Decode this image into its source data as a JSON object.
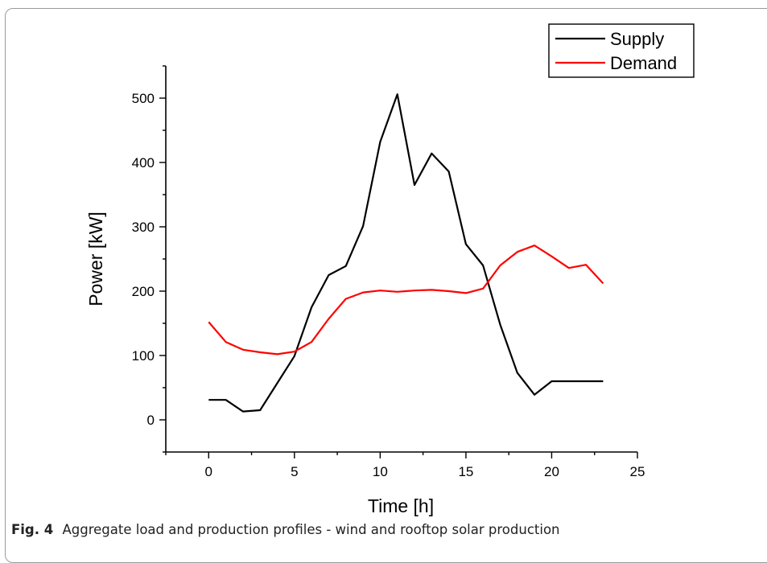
{
  "caption": {
    "label": "Fig. 4",
    "text": "Aggregate load and production profiles - wind and rooftop solar production"
  },
  "chart_data": {
    "type": "line",
    "title": "",
    "xlabel": "Time [h]",
    "ylabel": "Power [kW]",
    "xlim": [
      -2.5,
      25
    ],
    "ylim": [
      -50,
      550
    ],
    "xticks": [
      0,
      5,
      10,
      15,
      20,
      25
    ],
    "yticks": [
      0,
      100,
      200,
      300,
      400,
      500
    ],
    "grid": false,
    "legend_position": "top-right",
    "x": [
      0,
      1,
      2,
      3,
      4,
      5,
      6,
      7,
      8,
      9,
      10,
      11,
      12,
      13,
      14,
      15,
      16,
      17,
      18,
      19,
      20,
      21,
      22,
      23
    ],
    "series": [
      {
        "name": "Supply",
        "color": "#000000",
        "values": [
          31,
          31,
          13,
          15,
          57,
          99,
          175,
          225,
          239,
          301,
          432,
          506,
          365,
          414,
          386,
          273,
          240,
          148,
          73,
          39,
          60,
          60,
          60,
          60
        ]
      },
      {
        "name": "Demand",
        "color": "#ff0000",
        "values": [
          152,
          121,
          109,
          105,
          102,
          106,
          121,
          157,
          188,
          198,
          201,
          199,
          201,
          202,
          200,
          197,
          204,
          240,
          261,
          271,
          254,
          236,
          241,
          212
        ]
      }
    ]
  }
}
